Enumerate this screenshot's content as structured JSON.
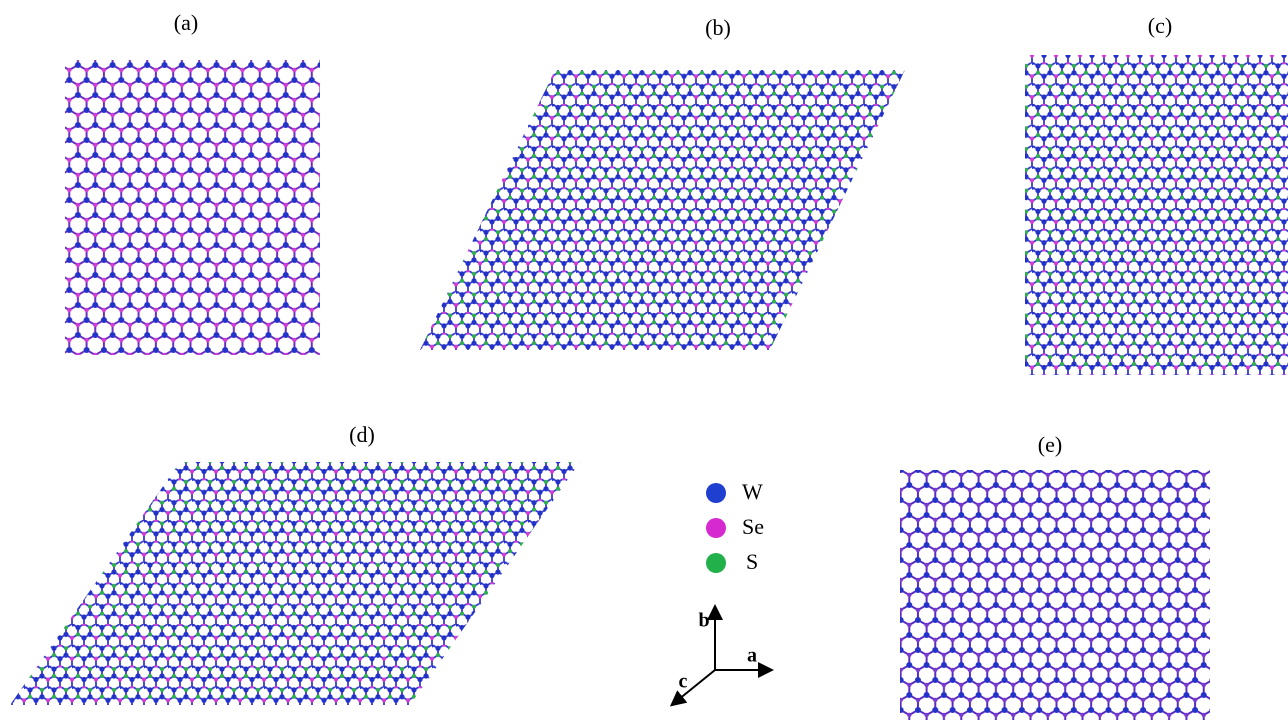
{
  "panels": [
    {
      "label": "(a)"
    },
    {
      "label": "(b)"
    },
    {
      "label": "(c)"
    },
    {
      "label": "(d)"
    },
    {
      "label": "(e)"
    }
  ],
  "legend": [
    {
      "label": "W"
    },
    {
      "label": "Se"
    },
    {
      "label": "S"
    }
  ],
  "axes": {
    "b": "b",
    "a": "a",
    "c": "c"
  }
}
